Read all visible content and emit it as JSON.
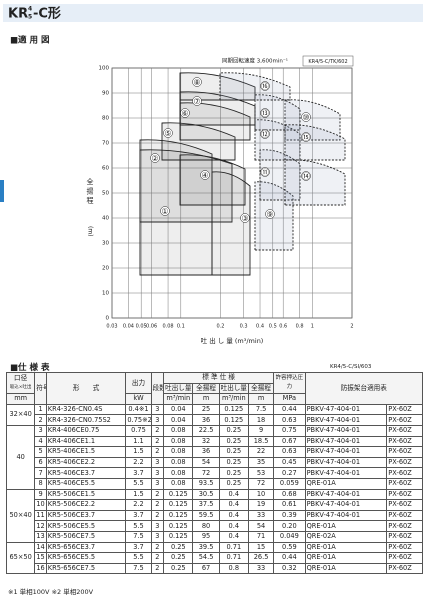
{
  "header": {
    "title_main": "KR",
    "title_sup": "4",
    "title_sub": "5",
    "title_suffix": "-C形"
  },
  "diagram": {
    "section": "■適 用 図",
    "speed_note": "同期回転速度 3,600min⁻¹",
    "code": "KR4/5-C/TK/602",
    "x_label": "吐 出 し 量 (m³/min)",
    "y_label": "全 揚 程",
    "y_unit": "(m)",
    "xscale": "log",
    "xlim": [
      0.03,
      2
    ],
    "ylim": [
      0,
      100
    ],
    "xticks": [
      0.03,
      0.04,
      0.05,
      0.06,
      0.08,
      0.1,
      0.2,
      0.3,
      0.4,
      0.5,
      0.6,
      0.8,
      1,
      2
    ],
    "yticks": [
      0,
      10,
      20,
      30,
      40,
      50,
      60,
      70,
      80,
      90,
      100
    ],
    "grid": true,
    "region_labels": [
      "①",
      "②",
      "③",
      "④",
      "⑤",
      "⑥",
      "⑦",
      "⑧",
      "⑨",
      "⑩",
      "⑪",
      "⑫",
      "⑬",
      "⑭",
      "⑮",
      "⑯"
    ]
  },
  "spec": {
    "section": "■仕 様 表",
    "code": "KR4/5-C/SI/603",
    "headers": {
      "bore": "口径",
      "bore_sub": "吸込×吐出",
      "bore_unit": "mm",
      "code": "符号",
      "model": "形　　式",
      "power": "出力",
      "power_unit": "kW",
      "stages": "段数",
      "standard": "標 準 仕 様",
      "flow": "吐出し量",
      "head": "全揚程",
      "flow_unit": "m³/min",
      "head_unit": "m",
      "pressure": "許容押込圧力",
      "pressure_unit": "MPa",
      "mount": "防振架台適用表"
    },
    "groups": [
      {
        "bore": "32×40",
        "rows": [
          [
            "1",
            "KR4-326-CN0.4S",
            "0.4※1",
            "3",
            "0.04",
            "25",
            "0.125",
            "7.5",
            "0.44",
            "PBKV-47-404-01",
            "PX-60Z"
          ],
          [
            "2",
            "KR4-326-CN0.75S2",
            "0.75※2",
            "3",
            "0.04",
            "36",
            "0.125",
            "18",
            "0.63",
            "PBKV-47-404-01",
            "PX-60Z"
          ]
        ]
      },
      {
        "bore": "40",
        "rows": [
          [
            "3",
            "KR4-406CE0.75",
            "0.75",
            "2",
            "0.08",
            "22.5",
            "0.25",
            "9",
            "0.75",
            "PBKV-47-404-01",
            "PX-60Z"
          ],
          [
            "4",
            "KR4-406CE1.1",
            "1.1",
            "2",
            "0.08",
            "32",
            "0.25",
            "18.5",
            "0.67",
            "PBKV-47-404-01",
            "PX-60Z"
          ],
          [
            "5",
            "KR5-406CE1.5",
            "1.5",
            "2",
            "0.08",
            "36",
            "0.25",
            "22",
            "0.63",
            "PBKV-47-404-01",
            "PX-60Z"
          ],
          [
            "6",
            "KR5-406CE2.2",
            "2.2",
            "3",
            "0.08",
            "54",
            "0.25",
            "35",
            "0.45",
            "PBKV-47-404-01",
            "PX-60Z"
          ],
          [
            "7",
            "KR5-406CE3.7",
            "3.7",
            "3",
            "0.08",
            "72",
            "0.25",
            "53",
            "0.27",
            "PBKV-47-404-01",
            "PX-60Z"
          ],
          [
            "8",
            "KR5-406CE5.5",
            "5.5",
            "3",
            "0.08",
            "93.5",
            "0.25",
            "72",
            "0.059",
            "QRE-01A",
            "PX-60Z"
          ]
        ]
      },
      {
        "bore": "50×40",
        "rows": [
          [
            "9",
            "KR5-506CE1.5",
            "1.5",
            "2",
            "0.125",
            "30.5",
            "0.4",
            "10",
            "0.68",
            "PBKV-47-404-01",
            "PX-60Z"
          ],
          [
            "10",
            "KR5-506CE2.2",
            "2.2",
            "2",
            "0.125",
            "37.5",
            "0.4",
            "19",
            "0.61",
            "PBKV-47-404-01",
            "PX-60Z"
          ],
          [
            "11",
            "KR5-506CE3.7",
            "3.7",
            "2",
            "0.125",
            "59.5",
            "0.4",
            "33",
            "0.39",
            "PBKV-47-404-01",
            "PX-60Z"
          ],
          [
            "12",
            "KR5-506CE5.5",
            "5.5",
            "3",
            "0.125",
            "80",
            "0.4",
            "54",
            "0.20",
            "QRE-01A",
            "PX-60Z"
          ],
          [
            "13",
            "KR5-506CE7.5",
            "7.5",
            "3",
            "0.125",
            "95",
            "0.4",
            "71",
            "0.049",
            "QRE-02A",
            "PX-60Z"
          ]
        ]
      },
      {
        "bore": "65×50",
        "rows": [
          [
            "14",
            "KR5-656CE3.7",
            "3.7",
            "2",
            "0.25",
            "39.5",
            "0.71",
            "15",
            "0.59",
            "QRE-01A",
            "PX-60Z"
          ],
          [
            "15",
            "KR5-656CE5.5",
            "5.5",
            "2",
            "0.25",
            "54.5",
            "0.71",
            "26.5",
            "0.44",
            "QRE-01A",
            "PX-60Z"
          ],
          [
            "16",
            "KR5-656CE7.5",
            "7.5",
            "2",
            "0.25",
            "67",
            "0.8",
            "33",
            "0.32",
            "QRE-01A",
            "PX-60Z"
          ]
        ]
      }
    ],
    "footnote": "※1 単相100V ※2 単相200V"
  }
}
